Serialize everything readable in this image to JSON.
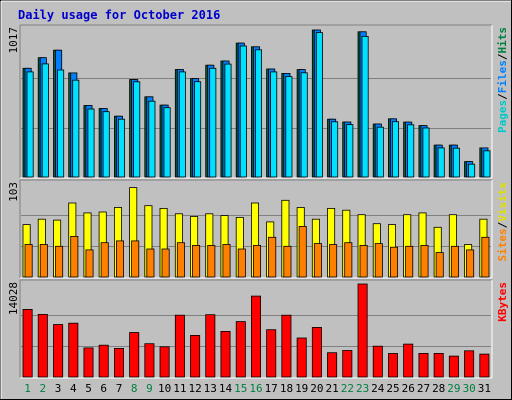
{
  "chart_data": {
    "type": "bar",
    "title": "Daily usage for October 2016",
    "categories": [
      "1",
      "2",
      "3",
      "4",
      "5",
      "6",
      "7",
      "8",
      "9",
      "10",
      "11",
      "12",
      "13",
      "14",
      "15",
      "16",
      "17",
      "18",
      "19",
      "20",
      "21",
      "22",
      "23",
      "24",
      "25",
      "26",
      "27",
      "28",
      "29",
      "30",
      "31"
    ],
    "weekend_days": [
      "1",
      "2",
      "8",
      "9",
      "15",
      "16",
      "22",
      "23",
      "29",
      "30"
    ],
    "panels": [
      {
        "name": "top",
        "max_label": "1017",
        "ymax": 1017,
        "legend": [
          {
            "text": "Pages",
            "color": "#00c8c8"
          },
          {
            "text": "/",
            "color": "#000000"
          },
          {
            "text": "Files",
            "color": "#0080ff"
          },
          {
            "text": "/",
            "color": "#000000"
          },
          {
            "text": "Hits",
            "color": "#008040"
          }
        ],
        "series": [
          {
            "name": "Hits",
            "color": "#006040",
            "values": [
              747,
              820,
              871,
              715,
              491,
              471,
              418,
              670,
              551,
              494,
              739,
              676,
              768,
              797,
              920,
              895,
              742,
              712,
              738,
              1010,
              397,
              378,
              998,
              364,
              400,
              377,
              353,
              219,
              219,
              106,
              200
            ]
          },
          {
            "name": "Files",
            "color": "#0080ff",
            "values": [
              747,
              820,
              871,
              715,
              491,
              471,
              418,
              670,
              551,
              494,
              739,
              676,
              768,
              797,
              920,
              895,
              742,
              712,
              738,
              1010,
              397,
              378,
              998,
              364,
              400,
              377,
              353,
              219,
              219,
              106,
              200
            ]
          },
          {
            "name": "Pages",
            "color": "#00e0ff",
            "values": [
              722,
              777,
              735,
              665,
              467,
              449,
              397,
              654,
              521,
              476,
              722,
              655,
              747,
              776,
              900,
              874,
              722,
              690,
              716,
              992,
              379,
              360,
              966,
              342,
              380,
              359,
              337,
              200,
              198,
              88,
              180
            ]
          }
        ]
      },
      {
        "name": "middle",
        "max_label": "103",
        "ymax": 103,
        "legend": [
          {
            "text": "Sites",
            "color": "#ff8000"
          },
          {
            "text": "/",
            "color": "#000000"
          },
          {
            "text": "Visits",
            "color": "#e0e000"
          }
        ],
        "series": [
          {
            "name": "Visits",
            "color": "#ffff00",
            "values": [
              58,
              64,
              63,
              82,
              71,
              72,
              77,
              99,
              79,
              76,
              70,
              67,
              70,
              68,
              66,
              82,
              61,
              85,
              77,
              64,
              76,
              74,
              69,
              59,
              58,
              69,
              71,
              55,
              69,
              36,
              64
            ]
          },
          {
            "name": "Sites",
            "color": "#ff8000",
            "values": [
              36,
              36,
              34,
              45,
              30,
              38,
              40,
              40,
              31,
              31,
              38,
              35,
              35,
              36,
              31,
              35,
              44,
              34,
              56,
              37,
              36,
              38,
              35,
              37,
              33,
              34,
              35,
              27,
              34,
              30,
              44
            ]
          }
        ]
      },
      {
        "name": "bottom",
        "max_label": "14028",
        "ymax": 14028,
        "legend": [
          {
            "text": "KBytes",
            "color": "#ff0000"
          }
        ],
        "series": [
          {
            "name": "KBytes",
            "color": "#ff0000",
            "values": [
              10200,
              9440,
              7920,
              8120,
              4390,
              4800,
              4310,
              6710,
              5030,
              4550,
              9320,
              6270,
              9400,
              6880,
              8350,
              12200,
              7140,
              9320,
              5880,
              7480,
              3660,
              3990,
              14028,
              4650,
              3540,
              4970,
              3560,
              3560,
              3160,
              3950,
              3460
            ]
          }
        ]
      }
    ]
  }
}
